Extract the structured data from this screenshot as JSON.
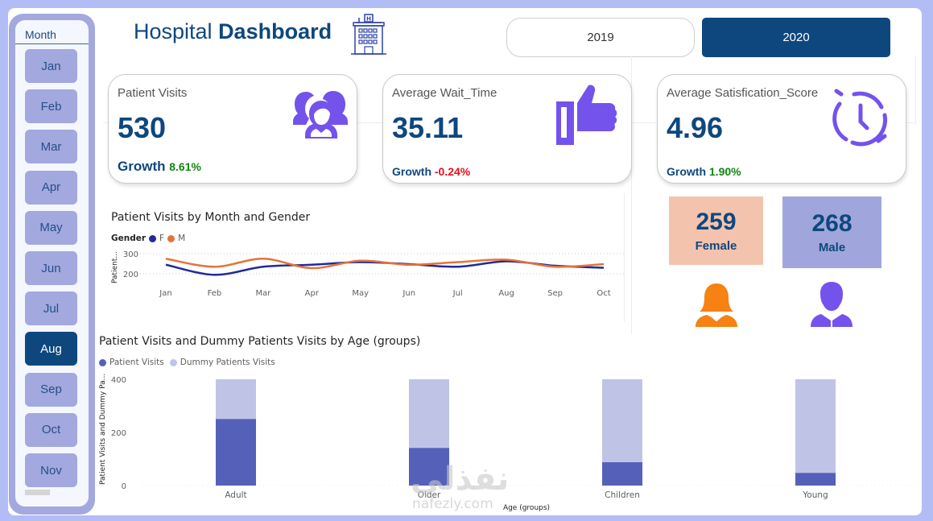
{
  "header": {
    "title_light": "Hospital",
    "title_bold": "Dashboard",
    "hospital_icon_letter": "H"
  },
  "year_filter": {
    "options": [
      {
        "label": "2019",
        "selected": false
      },
      {
        "label": "2020",
        "selected": true
      }
    ]
  },
  "month_slicer": {
    "title": "Month",
    "months": [
      {
        "label": "Jan",
        "selected": false
      },
      {
        "label": "Feb",
        "selected": false
      },
      {
        "label": "Mar",
        "selected": false
      },
      {
        "label": "Apr",
        "selected": false
      },
      {
        "label": "May",
        "selected": false
      },
      {
        "label": "Jun",
        "selected": false
      },
      {
        "label": "Jul",
        "selected": false
      },
      {
        "label": "Aug",
        "selected": true
      },
      {
        "label": "Sep",
        "selected": false
      },
      {
        "label": "Oct",
        "selected": false
      },
      {
        "label": "Nov",
        "selected": false
      }
    ]
  },
  "kpis": [
    {
      "label": "Patient Visits",
      "value": "530",
      "growth_label": "Growth",
      "growth": "8.61%",
      "trend": "positive",
      "icon": "patients-group-icon"
    },
    {
      "label": "Average Wait_Time",
      "value": "35.11",
      "growth_label": "Growth",
      "growth": "-0.24%",
      "trend": "negative",
      "icon": "thumbs-up-icon"
    },
    {
      "label": "Average Satisfication_Score",
      "value": "4.96",
      "growth_label": "Growth",
      "growth": "1.90%",
      "trend": "positive",
      "icon": "clock-icon"
    }
  ],
  "gender": {
    "female": {
      "value": "259",
      "label": "Female",
      "color": "#f4c3ae",
      "icon": "female-user-icon",
      "icon_color": "#f78113"
    },
    "male": {
      "value": "268",
      "label": "Male",
      "color": "#a0a6db",
      "icon": "male-user-icon",
      "icon_color": "#7452ec"
    }
  },
  "colors": {
    "primary": "#0e477e",
    "accent_purple": "#7452ec",
    "positive": "#12850f",
    "negative": "#e8101b"
  },
  "chart_data": [
    {
      "type": "line",
      "title": "Patient Visits by Month and Gender",
      "legend_title": "Gender",
      "xlabel": "",
      "ylabel": "Patient...",
      "x": [
        "Jan",
        "Feb",
        "Mar",
        "Apr",
        "May",
        "Jun",
        "Jul",
        "Aug",
        "Sep",
        "Oct"
      ],
      "yticks": [
        200,
        300
      ],
      "ylim": [
        150,
        320
      ],
      "grid": true,
      "legend_position": "top-left",
      "series": [
        {
          "name": "F",
          "color": "#1f2a9c",
          "values": [
            245,
            195,
            235,
            245,
            258,
            248,
            235,
            262,
            240,
            230
          ]
        },
        {
          "name": "M",
          "color": "#e5733a",
          "values": [
            275,
            235,
            275,
            228,
            265,
            245,
            258,
            270,
            235,
            248
          ]
        }
      ]
    },
    {
      "type": "bar",
      "stacked": true,
      "title": "Patient Visits and Dummy Patients Visits by Age (groups)",
      "xlabel": "Age (groups)",
      "ylabel": "Patient Visits and Dummy Pa...",
      "categories": [
        "Adult",
        "Older",
        "Children",
        "Young"
      ],
      "yticks": [
        0,
        200,
        400
      ],
      "ylim": [
        0,
        400
      ],
      "grid": false,
      "legend_position": "top-left",
      "series": [
        {
          "name": "Patient Visits",
          "color": "#5561b8",
          "values": [
            251,
            142,
            88,
            48
          ]
        },
        {
          "name": "Dummy Patients Visits",
          "color": "#bfc4e6",
          "values": [
            149,
            258,
            312,
            352
          ]
        }
      ]
    }
  ]
}
